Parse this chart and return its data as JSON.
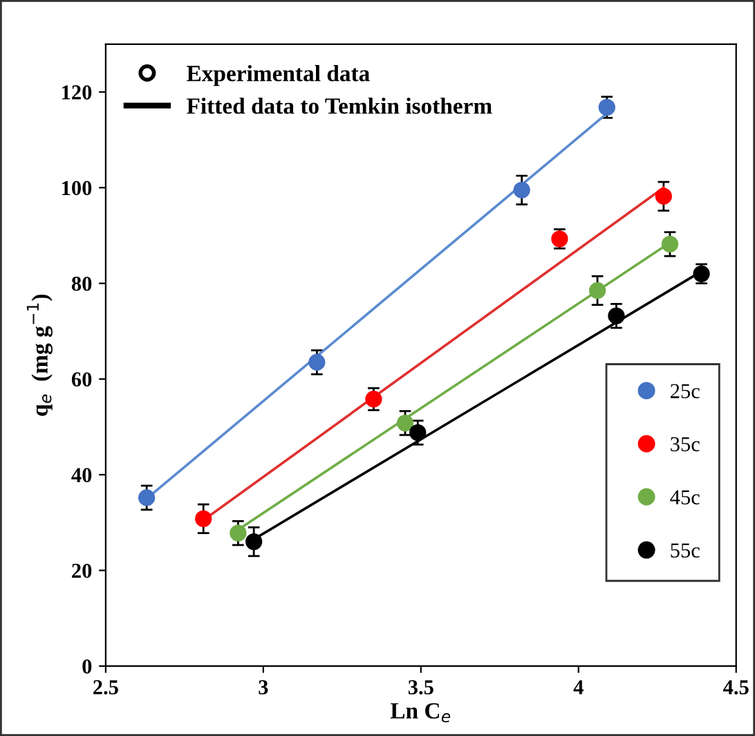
{
  "chart_data": {
    "type": "scatter",
    "xlabel": "Ln C$_{e}$",
    "ylabel": "q$_{e}$  (mg g$^{−1}$)",
    "xlim": [
      2.5,
      4.5
    ],
    "xticks": [
      2.5,
      3,
      3.5,
      4,
      4.5
    ],
    "ylim": [
      0,
      130
    ],
    "yticks": [
      0,
      20,
      40,
      60,
      80,
      100,
      120
    ],
    "grid": false,
    "legend": "right",
    "annotations": [
      "Experimental data",
      "Fitted data to Temkin isotherm"
    ],
    "series": [
      {
        "name": "25c",
        "marker": "circle",
        "color": "#4472c4",
        "x": [
          2.63,
          3.17,
          3.82,
          4.09
        ],
        "values": [
          35.2,
          63.5,
          99.5,
          116.8
        ],
        "errors": [
          2.5,
          2.5,
          3,
          2.2
        ]
      },
      {
        "name": "35c",
        "marker": "circle",
        "color": "#ff0000",
        "x": [
          2.81,
          3.35,
          3.94,
          4.27
        ],
        "values": [
          30.8,
          55.8,
          89.3,
          98.2
        ],
        "errors": [
          3,
          2.3,
          2,
          3
        ]
      },
      {
        "name": "45c",
        "marker": "circle",
        "color": "#70ad47",
        "x": [
          2.92,
          3.45,
          4.06,
          4.29
        ],
        "values": [
          27.8,
          50.8,
          78.5,
          88.2
        ],
        "errors": [
          2.5,
          2.5,
          3,
          2.5
        ]
      },
      {
        "name": "55c",
        "marker": "circle",
        "color": "#000000",
        "x": [
          2.97,
          3.49,
          4.12,
          4.39
        ],
        "values": [
          26.0,
          48.8,
          73.2,
          82.0
        ],
        "errors": [
          3,
          2.5,
          2.5,
          2
        ]
      },
      {
        "type": "line",
        "color": "#5b8bd0",
        "x": [
          2.63,
          4.09
        ],
        "values": [
          35.0,
          115.5
        ]
      },
      {
        "type": "line",
        "color": "#e03030",
        "x": [
          2.81,
          4.27
        ],
        "values": [
          30.5,
          100.0
        ]
      },
      {
        "type": "line",
        "color": "#70ad47",
        "x": [
          2.92,
          4.29
        ],
        "values": [
          28.5,
          88.5
        ]
      },
      {
        "type": "line",
        "color": "#000000",
        "x": [
          2.97,
          4.39
        ],
        "values": [
          26.5,
          82.5
        ]
      }
    ]
  }
}
